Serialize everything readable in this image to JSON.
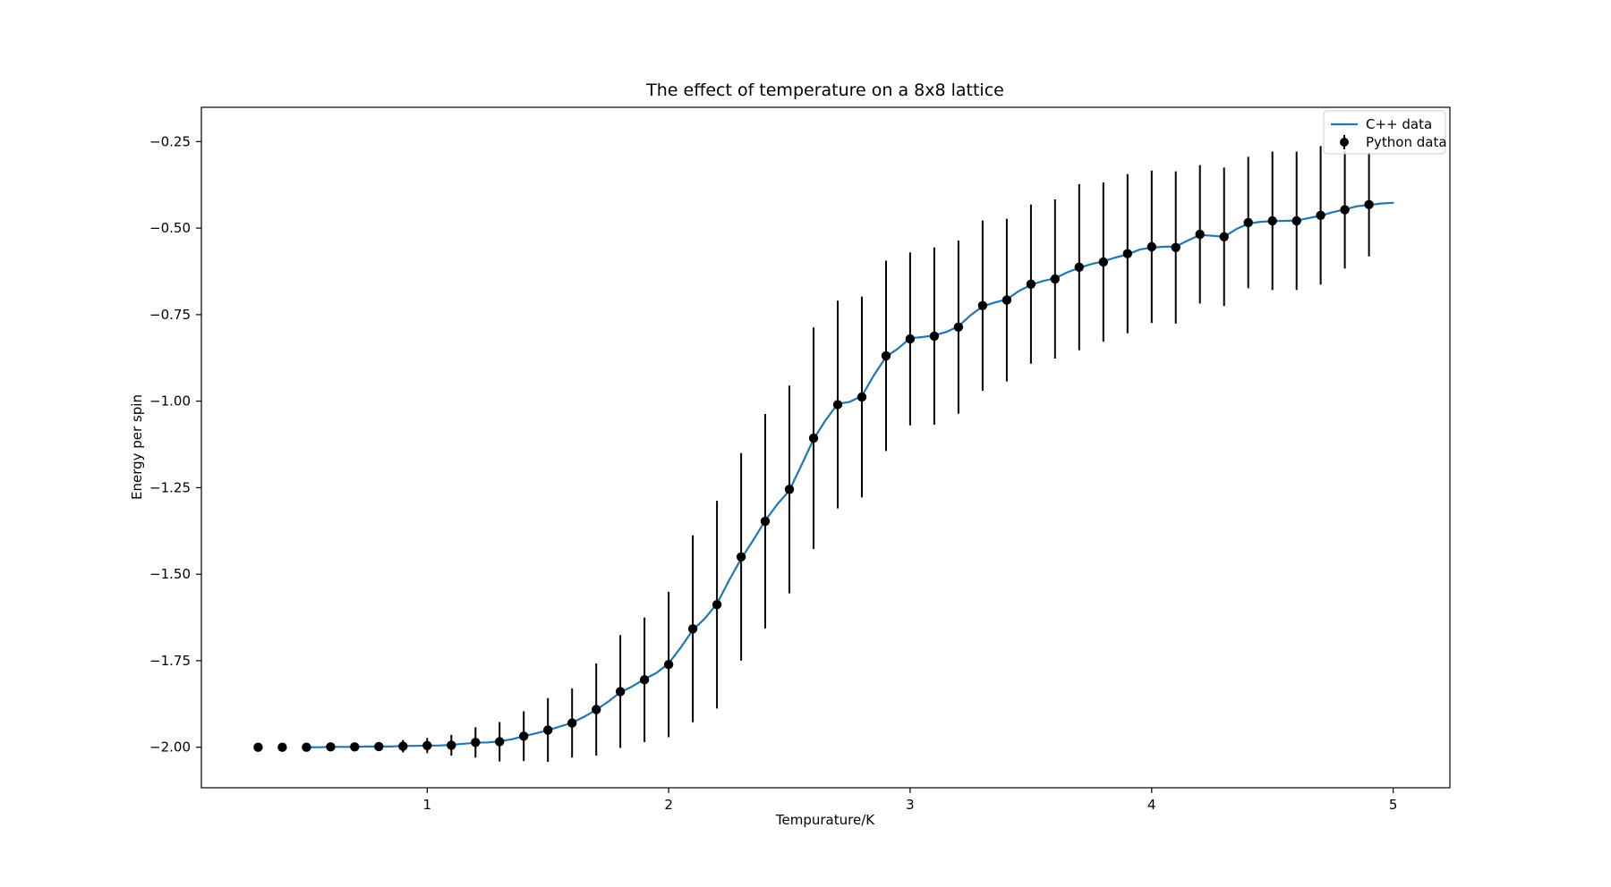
{
  "figure": {
    "title": "The effect of temperature on a 8x8 lattice",
    "xlabel": "Tempurature/K",
    "ylabel": "Energy per spin",
    "background_color": "#ffffff",
    "spine_color": "#000000",
    "line_color": "#1f77b4",
    "marker_color": "#000000"
  },
  "legend": {
    "position": "upper right",
    "entries": [
      {
        "label": "C++ data",
        "marker": "line",
        "color": "#1f77b4"
      },
      {
        "label": "Python data",
        "marker": "dot-errorbar",
        "color": "#000000"
      }
    ]
  },
  "chart_data": {
    "type": "line",
    "title": "The effect of temperature on a 8x8 lattice",
    "xlabel": "Tempurature/K",
    "ylabel": "Energy per spin",
    "xlim": [
      0.065,
      5.235
    ],
    "ylim": [
      -2.117,
      -0.151
    ],
    "xticks": [
      1,
      2,
      3,
      4,
      5
    ],
    "xtick_labels": [
      "1",
      "2",
      "3",
      "4",
      "5"
    ],
    "yticks": [
      -0.25,
      -0.5,
      -0.75,
      -1.0,
      -1.25,
      -1.5,
      -1.75,
      -2.0
    ],
    "ytick_labels": [
      "−0.25",
      "−0.50",
      "−0.75",
      "−1.00",
      "−1.25",
      "−1.50",
      "−1.75",
      "−2.00"
    ],
    "grid": false,
    "legend_position": "upper right",
    "series": [
      {
        "name": "C++ data",
        "type": "line",
        "color": "#1f77b4",
        "x": [
          0.5,
          0.55,
          0.6,
          0.65,
          0.7,
          0.75,
          0.8,
          0.85,
          0.9,
          0.95,
          1.0,
          1.05,
          1.1,
          1.15,
          1.2,
          1.25,
          1.3,
          1.35,
          1.4,
          1.45,
          1.5,
          1.55,
          1.6,
          1.65,
          1.7,
          1.75,
          1.8,
          1.85,
          1.9,
          1.95,
          2.0,
          2.05,
          2.1,
          2.15,
          2.2,
          2.25,
          2.3,
          2.35,
          2.4,
          2.45,
          2.5,
          2.55,
          2.6,
          2.65,
          2.7,
          2.75,
          2.8,
          2.85,
          2.9,
          2.95,
          3.0,
          3.05,
          3.1,
          3.15,
          3.2,
          3.25,
          3.3,
          3.35,
          3.4,
          3.45,
          3.5,
          3.55,
          3.6,
          3.65,
          3.7,
          3.75,
          3.8,
          3.85,
          3.9,
          3.95,
          4.0,
          4.05,
          4.1,
          4.15,
          4.2,
          4.25,
          4.3,
          4.35,
          4.4,
          4.45,
          4.5,
          4.55,
          4.6,
          4.65,
          4.7,
          4.75,
          4.8,
          4.85,
          4.9,
          4.95,
          5.0
        ],
        "y": [
          -2.0,
          -2.0,
          -1.999,
          -1.999,
          -1.999,
          -1.998,
          -1.998,
          -1.998,
          -1.996,
          -1.996,
          -1.995,
          -1.995,
          -1.993,
          -1.99,
          -1.987,
          -1.986,
          -1.983,
          -1.977,
          -1.968,
          -1.96,
          -1.951,
          -1.94,
          -1.929,
          -1.912,
          -1.892,
          -1.868,
          -1.841,
          -1.824,
          -1.803,
          -1.785,
          -1.758,
          -1.712,
          -1.661,
          -1.628,
          -1.585,
          -1.518,
          -1.455,
          -1.402,
          -1.345,
          -1.298,
          -1.258,
          -1.185,
          -1.11,
          -1.055,
          -1.008,
          -1.002,
          -0.985,
          -0.925,
          -0.872,
          -0.848,
          -0.818,
          -0.815,
          -0.81,
          -0.8,
          -0.784,
          -0.752,
          -0.726,
          -0.715,
          -0.706,
          -0.682,
          -0.664,
          -0.653,
          -0.645,
          -0.628,
          -0.615,
          -0.604,
          -0.596,
          -0.585,
          -0.576,
          -0.562,
          -0.556,
          -0.554,
          -0.553,
          -0.536,
          -0.52,
          -0.522,
          -0.525,
          -0.503,
          -0.487,
          -0.482,
          -0.48,
          -0.479,
          -0.478,
          -0.471,
          -0.464,
          -0.454,
          -0.446,
          -0.437,
          -0.433,
          -0.429,
          -0.427
        ]
      },
      {
        "name": "Python data",
        "type": "scatter_errorbar",
        "color": "#000000",
        "x": [
          0.3,
          0.4,
          0.5,
          0.6,
          0.7,
          0.8,
          0.9,
          1.0,
          1.1,
          1.2,
          1.3,
          1.4,
          1.5,
          1.6,
          1.7,
          1.8,
          1.9,
          2.0,
          2.1,
          2.2,
          2.3,
          2.4,
          2.5,
          2.6,
          2.7,
          2.8,
          2.9,
          3.0,
          3.1,
          3.2,
          3.3,
          3.4,
          3.5,
          3.6,
          3.7,
          3.8,
          3.9,
          4.0,
          4.1,
          4.2,
          4.3,
          4.4,
          4.5,
          4.6,
          4.7,
          4.8,
          4.9
        ],
        "y": [
          -2.0,
          -2.0,
          -2.0,
          -1.999,
          -1.999,
          -1.998,
          -1.997,
          -1.995,
          -1.994,
          -1.986,
          -1.984,
          -1.968,
          -1.95,
          -1.93,
          -1.891,
          -1.839,
          -1.805,
          -1.761,
          -1.658,
          -1.588,
          -1.45,
          -1.347,
          -1.255,
          -1.107,
          -1.01,
          -0.988,
          -0.869,
          -0.82,
          -0.812,
          -0.786,
          -0.724,
          -0.708,
          -0.662,
          -0.647,
          -0.613,
          -0.598,
          -0.574,
          -0.554,
          -0.556,
          -0.518,
          -0.525,
          -0.484,
          -0.479,
          -0.479,
          -0.463,
          -0.447,
          -0.432
        ],
        "yerr": [
          0.004,
          0.005,
          0.006,
          0.008,
          0.01,
          0.013,
          0.018,
          0.022,
          0.03,
          0.044,
          0.057,
          0.072,
          0.092,
          0.1,
          0.133,
          0.163,
          0.18,
          0.21,
          0.27,
          0.3,
          0.3,
          0.31,
          0.3,
          0.32,
          0.3,
          0.29,
          0.275,
          0.25,
          0.256,
          0.25,
          0.246,
          0.235,
          0.23,
          0.23,
          0.24,
          0.23,
          0.23,
          0.22,
          0.22,
          0.2,
          0.2,
          0.19,
          0.2,
          0.2,
          0.2,
          0.17,
          0.15
        ]
      }
    ]
  }
}
